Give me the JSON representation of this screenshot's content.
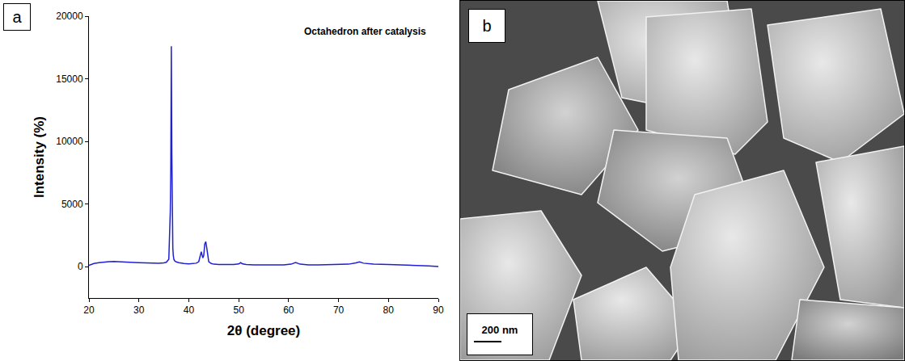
{
  "chart_data": {
    "type": "line",
    "panel_label": "a",
    "annotations": [
      "Octahedron after catalysis"
    ],
    "x_label": "2θ (degree)",
    "y_label": "Intensity (%)",
    "x": [
      20,
      21,
      22,
      23,
      24,
      25,
      26,
      27,
      28,
      29,
      30,
      31,
      32,
      33,
      34,
      35,
      35.5,
      36,
      36.2,
      36.3,
      36.4,
      36.5,
      36.6,
      36.7,
      36.8,
      36.9,
      37,
      37.2,
      37.5,
      38,
      39,
      40,
      41,
      41.5,
      42,
      42.3,
      42.5,
      42.8,
      43,
      43.2,
      43.4,
      43.6,
      43.8,
      44,
      44.5,
      45,
      46,
      47,
      48,
      49,
      50,
      50.4,
      50.8,
      51.5,
      53,
      55,
      57,
      59,
      60.5,
      61.4,
      62.3,
      64,
      66,
      68,
      70,
      72,
      73.5,
      74.2,
      75,
      77,
      80,
      83,
      86,
      88,
      90
    ],
    "values": [
      100,
      250,
      320,
      380,
      400,
      420,
      410,
      380,
      360,
      340,
      320,
      300,
      290,
      280,
      270,
      300,
      350,
      600,
      2500,
      4500,
      8000,
      17600,
      9000,
      3800,
      1500,
      900,
      600,
      450,
      380,
      320,
      250,
      230,
      240,
      280,
      400,
      900,
      1200,
      700,
      900,
      1800,
      2000,
      1500,
      800,
      400,
      250,
      200,
      180,
      170,
      160,
      170,
      220,
      320,
      220,
      170,
      150,
      140,
      130,
      150,
      200,
      330,
      200,
      150,
      140,
      150,
      160,
      200,
      300,
      380,
      280,
      200,
      180,
      150,
      100,
      60,
      20
    ],
    "color": "#1f1fd8",
    "xlim": [
      20,
      90
    ],
    "xticks": [
      20,
      30,
      40,
      50,
      60,
      70,
      80,
      90
    ],
    "ylim": [
      -2500,
      20000
    ],
    "yticks": [
      0,
      5000,
      10000,
      15000,
      20000
    ],
    "grid": false
  },
  "image_panel": {
    "label": "b",
    "scale_bar": "200 nm"
  }
}
